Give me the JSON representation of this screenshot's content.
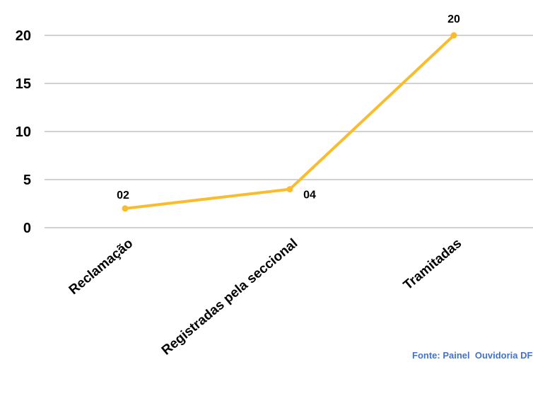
{
  "chart_data": {
    "type": "line",
    "categories": [
      "Reclamação",
      "Registradas pela seccional",
      "Tramitadas"
    ],
    "values": [
      2,
      4,
      20
    ],
    "data_labels": [
      "02",
      "04",
      "20"
    ],
    "yticks": [
      0,
      5,
      10,
      15,
      20
    ],
    "ylim": [
      0,
      20
    ],
    "grid": true,
    "legend": "none",
    "line_color": "#fbbc2c",
    "grid_color": "#a6a6a6",
    "title": "",
    "xlabel": "",
    "ylabel": ""
  },
  "source_text": "Fonte: Painel  Ouvidoria DF",
  "source_color": "#4472c4"
}
